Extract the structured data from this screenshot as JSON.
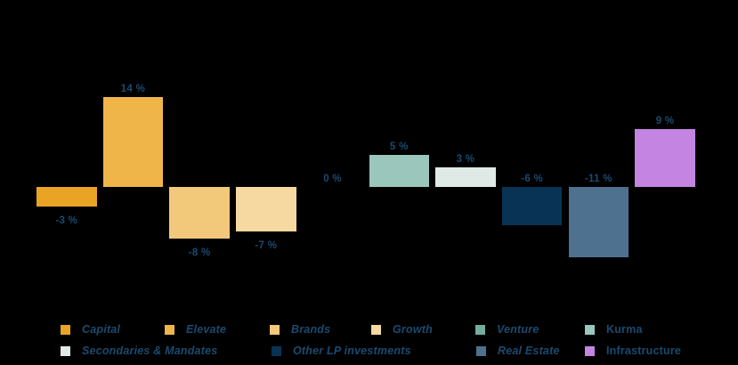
{
  "background_color": "#000000",
  "text_color": "#1b4a6f",
  "chart_data": {
    "type": "bar",
    "title": "",
    "unit": "%",
    "categories": [
      "Capital",
      "Elevate",
      "Brands",
      "Growth",
      "Venture",
      "Kurma",
      "Secondaries & Mandates",
      "Other LP investments",
      "Real Estate",
      "Infrastructure"
    ],
    "values": [
      -3,
      14,
      -8,
      -7,
      0,
      5,
      3,
      -6,
      -11,
      9
    ],
    "value_labels": [
      "-3 %",
      "14 %",
      "-8 %",
      "-7 %",
      "0 %",
      "5 %",
      "3 %",
      "-6 %",
      "-11 %",
      "9 %"
    ],
    "label_side": [
      "below",
      "top",
      "below",
      "below",
      "top",
      "top",
      "top",
      "top",
      "top",
      "top"
    ],
    "colors": [
      "#e9a325",
      "#efb549",
      "#f2c87a",
      "#f5d9a0",
      "#74ada0",
      "#9ac6bc",
      "#dfeae7",
      "#083355",
      "#4f7190",
      "#c484e2"
    ],
    "ylim": [
      -14,
      16
    ],
    "grid": false,
    "axes_visible": false,
    "legend_position": "bottom"
  },
  "legend": {
    "items": [
      {
        "label": "Capital",
        "color": "#e9a325",
        "italic": true
      },
      {
        "label": "Elevate",
        "color": "#efb549",
        "italic": true
      },
      {
        "label": "Brands",
        "color": "#f2c87a",
        "italic": true
      },
      {
        "label": "Growth",
        "color": "#f5d9a0",
        "italic": true
      },
      {
        "label": "Venture",
        "color": "#74ada0",
        "italic": true
      },
      {
        "label": "Kurma",
        "color": "#9ac6bc",
        "italic": false
      },
      {
        "label": "Secondaries & Mandates",
        "color": "#dfeae7",
        "italic": true
      },
      {
        "label": "Other LP investments",
        "color": "#083355",
        "italic": true
      },
      {
        "label": "Real Estate",
        "color": "#4f7190",
        "italic": true
      },
      {
        "label": "Infrastructure",
        "color": "#c484e2",
        "italic": false
      }
    ]
  }
}
